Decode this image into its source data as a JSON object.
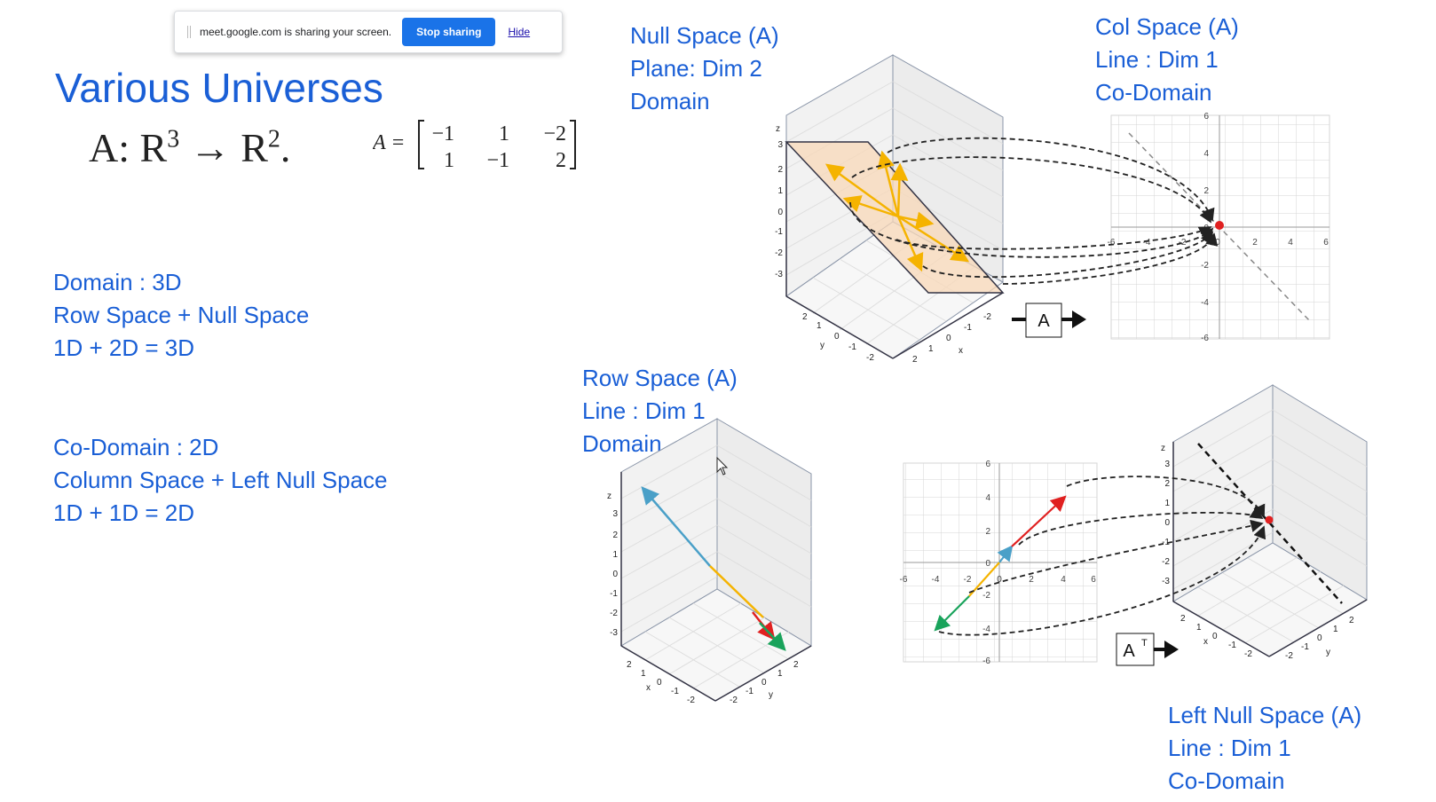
{
  "share_bar": {
    "message": "meet.google.com is sharing your screen.",
    "stop_label": "Stop sharing",
    "hide_label": "Hide"
  },
  "slide": {
    "title": "Various Universes",
    "mapping": {
      "a": "A: R",
      "exp1": "3",
      "arrow": "→",
      "r": " R",
      "exp2": "2",
      "dot": "."
    },
    "matrix": {
      "lhs": "A =",
      "rows": [
        [
          "−1",
          "1",
          "−2"
        ],
        [
          "1",
          "−1",
          "2"
        ]
      ]
    },
    "domain_text": [
      "Domain : 3D",
      "Row Space + Null Space",
      "1D + 2D = 3D"
    ],
    "codomain_text": [
      "Co-Domain : 2D",
      "Column Space + Left Null Space",
      "1D + 1D = 2D"
    ],
    "null_space_title": [
      "Null Space (A)",
      "Plane: Dim 2",
      "Domain"
    ],
    "col_space_title": [
      "Col Space (A)",
      "Line : Dim 1",
      "Co-Domain"
    ],
    "row_space_title": [
      "Row Space (A)",
      "Line : Dim 1",
      "Domain"
    ],
    "left_null_title": [
      "Left Null Space (A)",
      "Line : Dim 1",
      "Co-Domain"
    ],
    "map_a_label": "A",
    "map_at_label": "A",
    "map_at_sup": "T",
    "axis_z": "z",
    "axis_x": "x",
    "axis_y": "y",
    "ticks_3d_z": [
      "3",
      "2",
      "1",
      "0",
      "-1",
      "-2",
      "-3"
    ],
    "ticks_3d_left": [
      "2",
      "1",
      "0",
      "-1",
      "-2"
    ],
    "ticks_3d_right": [
      "-2",
      "-1",
      "0",
      "1",
      "2"
    ],
    "ticks_2d_y": [
      "6",
      "4",
      "2",
      "0",
      "-2",
      "-4",
      "-6"
    ],
    "ticks_2d_x": [
      "-6",
      "-4",
      "-2",
      "0",
      "2",
      "4",
      "6"
    ]
  }
}
